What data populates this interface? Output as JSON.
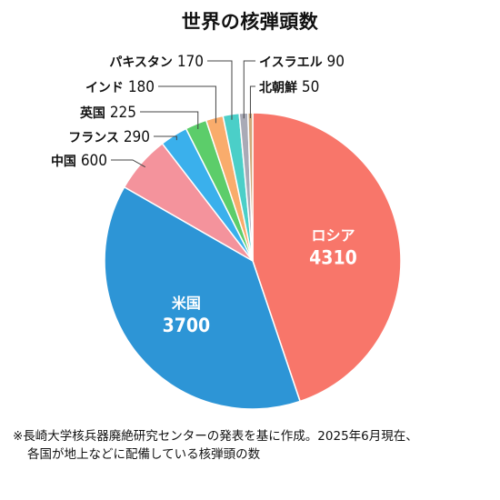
{
  "chart_data": {
    "type": "pie",
    "title": "世界の核弾頭数",
    "slices": [
      {
        "label": "ロシア",
        "value": 4310,
        "value_text": "4310",
        "color": "#f8766a"
      },
      {
        "label": "米国",
        "value": 3700,
        "value_text": "3700",
        "color": "#2d95d6"
      },
      {
        "label": "中国",
        "value": 600,
        "value_text": "600",
        "color": "#f4939c"
      },
      {
        "label": "フランス",
        "value": 290,
        "value_text": "290",
        "color": "#3ab0ec"
      },
      {
        "label": "英国",
        "value": 225,
        "value_text": "225",
        "color": "#5ccd6a"
      },
      {
        "label": "インド",
        "value": 180,
        "value_text": "180",
        "color": "#f9ac6c"
      },
      {
        "label": "パキスタン",
        "value": 170,
        "value_text": "170",
        "color": "#4bcfc8"
      },
      {
        "label": "イスラエル",
        "value": 90,
        "value_text": "90",
        "color": "#a9aab6"
      },
      {
        "label": "北朝鮮",
        "value": 50,
        "value_text": "50",
        "color": "#cfa87a"
      }
    ]
  },
  "footnote": {
    "line1": "※長崎大学核兵器廃絶研究センターの発表を基に作成。2025年6月現在、",
    "line2": "各国が地上などに配備している核弾頭の数"
  }
}
